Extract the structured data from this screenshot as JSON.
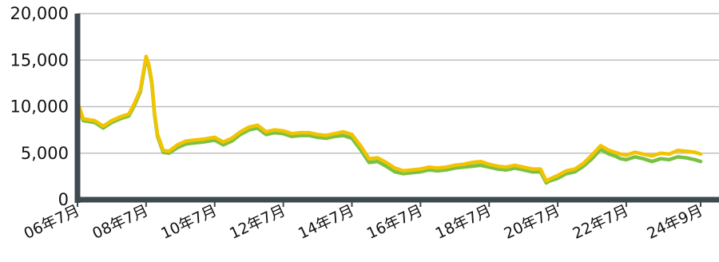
{
  "chart_data": {
    "type": "line",
    "title": "",
    "xlabel": "",
    "ylabel": "",
    "ylim": [
      0,
      20000
    ],
    "yticks": [
      0,
      5000,
      10000,
      15000,
      20000
    ],
    "ytick_labels": [
      "0",
      "5,000",
      "10,000",
      "15,000",
      "20,000"
    ],
    "xlim": [
      "2006-07",
      "2024-09"
    ],
    "xticks": [
      "2006-07",
      "2008-07",
      "2010-07",
      "2012-07",
      "2014-07",
      "2016-07",
      "2018-07",
      "2020-07",
      "2022-07",
      "2024-09"
    ],
    "xtick_labels": [
      "06年7月",
      "08年7月",
      "10年7月",
      "12年7月",
      "14年7月",
      "16年7月",
      "18年7月",
      "20年7月",
      "22年7月",
      "24年9月"
    ],
    "grid": "horizontal",
    "legend": "none",
    "colors": {
      "series_green": "#7ac143",
      "series_yellow": "#f2c300",
      "axis": "#3d4a4f",
      "grid": "#bfbfbf",
      "text": "#111111"
    },
    "series": [
      {
        "color": "#7ac143",
        "x": [
          "2006-07",
          "2006-09",
          "2006-11",
          "2007-01",
          "2007-04",
          "2007-07",
          "2007-10",
          "2008-01",
          "2008-03",
          "2008-05",
          "2008-07",
          "2008-08",
          "2008-09",
          "2008-10",
          "2008-11",
          "2009-01",
          "2009-03",
          "2009-06",
          "2009-09",
          "2009-12",
          "2010-03",
          "2010-07",
          "2010-10",
          "2011-01",
          "2011-04",
          "2011-07",
          "2011-10",
          "2012-01",
          "2012-04",
          "2012-07",
          "2012-10",
          "2013-01",
          "2013-04",
          "2013-07",
          "2013-10",
          "2014-01",
          "2014-04",
          "2014-07",
          "2014-10",
          "2015-01",
          "2015-04",
          "2015-07",
          "2015-10",
          "2016-01",
          "2016-04",
          "2016-07",
          "2016-10",
          "2017-01",
          "2017-04",
          "2017-07",
          "2017-10",
          "2018-01",
          "2018-04",
          "2018-07",
          "2018-10",
          "2019-01",
          "2019-04",
          "2019-07",
          "2019-10",
          "2020-01",
          "2020-03",
          "2020-04",
          "2020-07",
          "2020-10",
          "2021-01",
          "2021-04",
          "2021-07",
          "2021-10",
          "2022-01",
          "2022-03",
          "2022-05",
          "2022-07",
          "2022-10",
          "2023-01",
          "2023-04",
          "2023-07",
          "2023-10",
          "2024-01",
          "2024-04",
          "2024-07",
          "2024-09"
        ],
        "values": [
          10300,
          8500,
          8400,
          8300,
          7700,
          8300,
          8700,
          9000,
          10200,
          11600,
          15200,
          14300,
          12500,
          9000,
          6800,
          5100,
          5000,
          5600,
          6000,
          6100,
          6200,
          6400,
          5900,
          6300,
          7000,
          7500,
          7700,
          7000,
          7200,
          7100,
          6800,
          6900,
          6900,
          6700,
          6600,
          6800,
          6900,
          6600,
          5400,
          4000,
          4100,
          3600,
          3000,
          2800,
          2900,
          3000,
          3200,
          3100,
          3200,
          3400,
          3500,
          3600,
          3700,
          3500,
          3300,
          3200,
          3400,
          3200,
          3000,
          3000,
          1800,
          2000,
          2300,
          2800,
          3000,
          3600,
          4400,
          5400,
          4900,
          4700,
          4400,
          4300,
          4600,
          4400,
          4100,
          4400,
          4300,
          4600,
          4500,
          4300,
          4100
        ]
      },
      {
        "color": "#f2c300",
        "x": [
          "2006-07",
          "2006-09",
          "2006-11",
          "2007-01",
          "2007-04",
          "2007-07",
          "2007-10",
          "2008-01",
          "2008-03",
          "2008-05",
          "2008-07",
          "2008-08",
          "2008-09",
          "2008-10",
          "2008-11",
          "2009-01",
          "2009-03",
          "2009-06",
          "2009-09",
          "2009-12",
          "2010-03",
          "2010-07",
          "2010-10",
          "2011-01",
          "2011-04",
          "2011-07",
          "2011-10",
          "2012-01",
          "2012-04",
          "2012-07",
          "2012-10",
          "2013-01",
          "2013-04",
          "2013-07",
          "2013-10",
          "2014-01",
          "2014-04",
          "2014-07",
          "2014-10",
          "2015-01",
          "2015-04",
          "2015-07",
          "2015-10",
          "2016-01",
          "2016-04",
          "2016-07",
          "2016-10",
          "2017-01",
          "2017-04",
          "2017-07",
          "2017-10",
          "2018-01",
          "2018-04",
          "2018-07",
          "2018-10",
          "2019-01",
          "2019-04",
          "2019-07",
          "2019-10",
          "2020-01",
          "2020-03",
          "2020-04",
          "2020-07",
          "2020-10",
          "2021-01",
          "2021-04",
          "2021-07",
          "2021-10",
          "2022-01",
          "2022-03",
          "2022-05",
          "2022-07",
          "2022-10",
          "2023-01",
          "2023-04",
          "2023-07",
          "2023-10",
          "2024-01",
          "2024-04",
          "2024-07",
          "2024-09"
        ],
        "values": [
          10500,
          8700,
          8600,
          8500,
          7900,
          8500,
          8900,
          9200,
          10400,
          11800,
          15400,
          14500,
          12700,
          9200,
          7000,
          5300,
          5200,
          5900,
          6300,
          6400,
          6500,
          6700,
          6200,
          6600,
          7300,
          7800,
          8000,
          7300,
          7500,
          7400,
          7100,
          7200,
          7200,
          7000,
          6900,
          7100,
          7300,
          7000,
          5800,
          4400,
          4500,
          4000,
          3400,
          3100,
          3200,
          3300,
          3500,
          3400,
          3500,
          3700,
          3800,
          4000,
          4100,
          3800,
          3600,
          3500,
          3700,
          3500,
          3300,
          3300,
          2000,
          2200,
          2600,
          3100,
          3300,
          3900,
          4800,
          5800,
          5300,
          5100,
          4900,
          4800,
          5100,
          4900,
          4700,
          5000,
          4900,
          5300,
          5200,
          5100,
          4900
        ]
      }
    ]
  }
}
